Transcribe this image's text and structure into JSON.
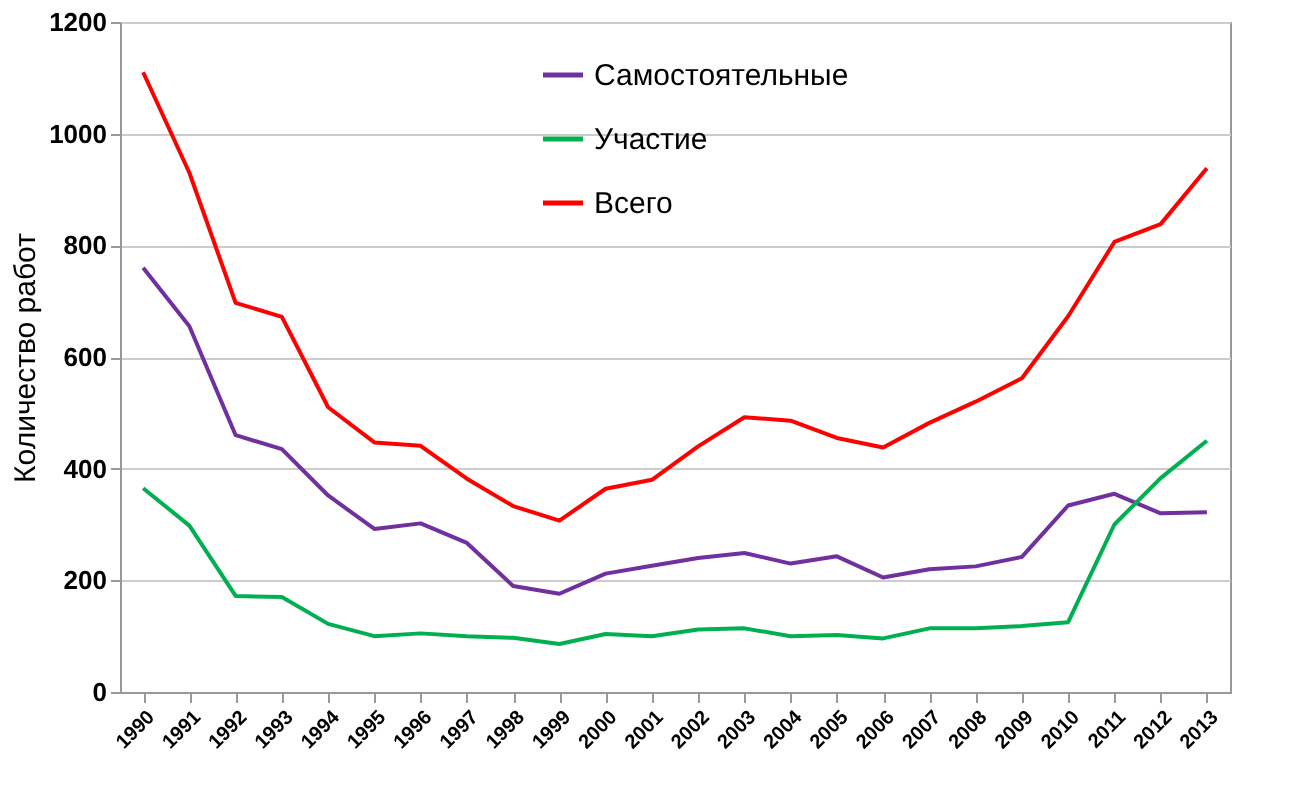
{
  "chart_data": {
    "type": "line",
    "ylabel": "Количество работ",
    "categories": [
      "1990",
      "1991",
      "1992",
      "1993",
      "1994",
      "1995",
      "1996",
      "1997",
      "1998",
      "1999",
      "2000",
      "2001",
      "2002",
      "2003",
      "2004",
      "2005",
      "2006",
      "2007",
      "2008",
      "2009",
      "2010",
      "2011",
      "2012",
      "2013"
    ],
    "series": [
      {
        "name": "Самостоятельные",
        "color": "#7030a0",
        "values": [
          760,
          655,
          460,
          435,
          352,
          292,
          302,
          267,
          190,
          176,
          212,
          226,
          240,
          249,
          230,
          243,
          205,
          220,
          225,
          242,
          334,
          355,
          320,
          322
        ]
      },
      {
        "name": "Участие",
        "color": "#00b050",
        "values": [
          365,
          298,
          172,
          170,
          122,
          100,
          105,
          100,
          97,
          86,
          104,
          100,
          112,
          114,
          100,
          102,
          96,
          114,
          114,
          118,
          125,
          300,
          383,
          450
        ]
      },
      {
        "name": "Всего",
        "color": "#ff0000",
        "values": [
          1110,
          930,
          697,
          672,
          510,
          447,
          441,
          382,
          333,
          307,
          364,
          380,
          440,
          492,
          486,
          455,
          438,
          482,
          520,
          562,
          673,
          806,
          838,
          938
        ]
      }
    ],
    "ylim": [
      0,
      1200
    ],
    "yticks": [
      0,
      200,
      400,
      600,
      800,
      1000,
      1200
    ],
    "grid": "y",
    "legend": "top",
    "marker": "none",
    "line_style": "solid"
  }
}
